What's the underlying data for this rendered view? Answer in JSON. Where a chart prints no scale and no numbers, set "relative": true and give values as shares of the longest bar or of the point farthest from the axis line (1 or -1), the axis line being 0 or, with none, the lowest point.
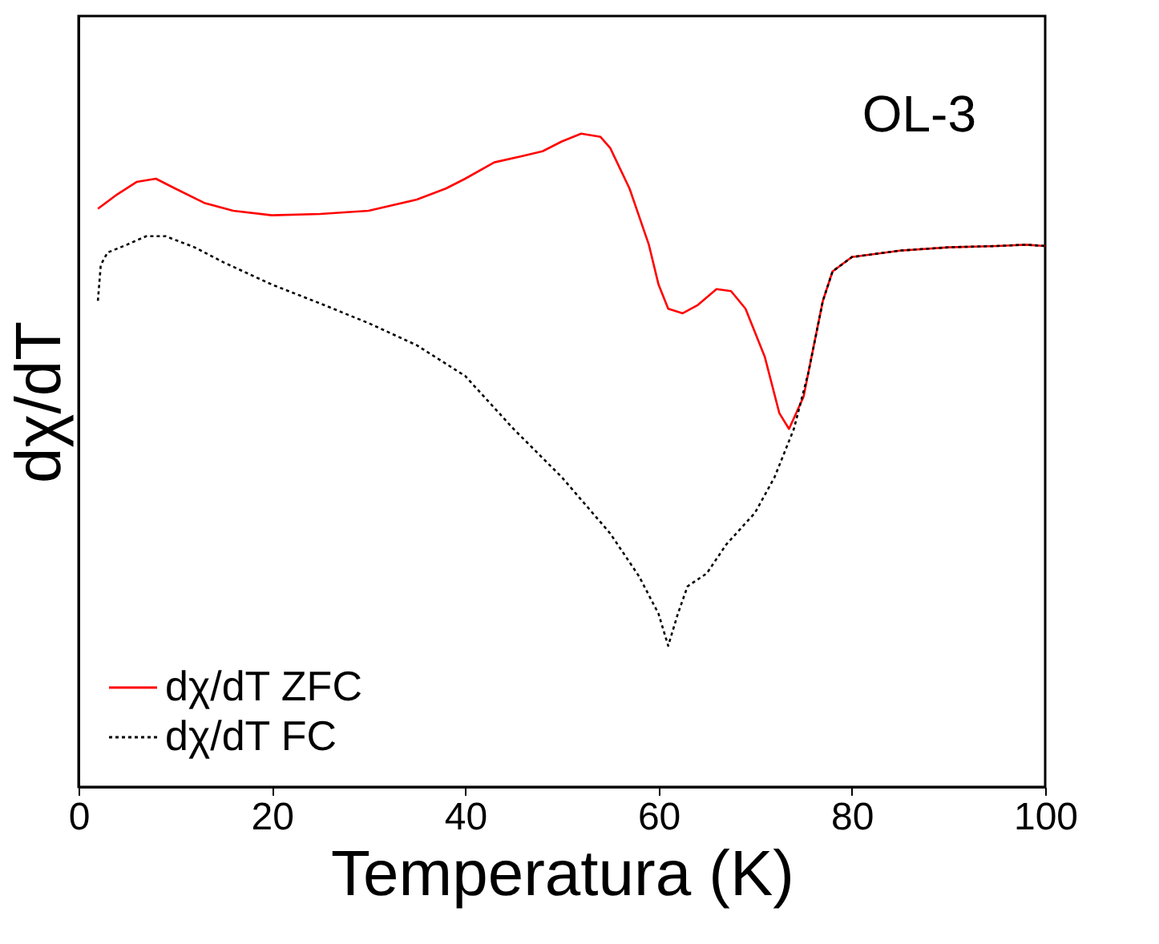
{
  "chart_data": {
    "type": "line",
    "relative": true,
    "xlabel": "Temperatura (K)",
    "ylabel": "dχ/dT",
    "annotations": [
      "OL-3"
    ],
    "xlim": [
      0,
      100
    ],
    "xticks": [
      0,
      20,
      40,
      60,
      80,
      100
    ],
    "legend": "bottom left",
    "grid": false,
    "series": [
      {
        "name": "dχ/dT ZFC",
        "color": "#ff0000",
        "line_style": "solid",
        "x": [
          2,
          4,
          6,
          8,
          10,
          13,
          16,
          20,
          25,
          30,
          35,
          38,
          40,
          43,
          46,
          48,
          50,
          52,
          54,
          55,
          57,
          59,
          60,
          61,
          62.5,
          64,
          66,
          67.5,
          69,
          71,
          72.5,
          73.5,
          75,
          76,
          77,
          78,
          80,
          85,
          90,
          95,
          98,
          100
        ],
        "values": [
          0.885,
          0.907,
          0.926,
          0.931,
          0.916,
          0.894,
          0.882,
          0.875,
          0.877,
          0.882,
          0.899,
          0.916,
          0.931,
          0.956,
          0.966,
          0.973,
          0.988,
          1.0,
          0.995,
          0.978,
          0.916,
          0.83,
          0.769,
          0.732,
          0.725,
          0.737,
          0.762,
          0.759,
          0.732,
          0.658,
          0.572,
          0.548,
          0.597,
          0.671,
          0.744,
          0.789,
          0.811,
          0.821,
          0.826,
          0.828,
          0.83,
          0.828
        ]
      },
      {
        "name": "dχ/dT FC",
        "color": "#000000",
        "line_style": "dotted",
        "x": [
          2,
          2.3,
          3,
          5,
          7,
          9,
          12,
          15,
          20,
          25,
          30,
          35,
          40,
          45,
          50,
          55,
          58,
          60,
          61,
          62,
          63,
          65,
          67,
          70,
          72,
          74,
          75.5,
          77,
          78,
          80,
          85,
          90,
          95,
          98,
          100
        ],
        "values": [
          0.744,
          0.799,
          0.818,
          0.83,
          0.843,
          0.843,
          0.826,
          0.803,
          0.769,
          0.74,
          0.71,
          0.676,
          0.629,
          0.548,
          0.474,
          0.388,
          0.322,
          0.265,
          0.216,
          0.265,
          0.307,
          0.327,
          0.371,
          0.42,
          0.474,
          0.548,
          0.634,
          0.744,
          0.789,
          0.811,
          0.821,
          0.826,
          0.828,
          0.83,
          0.828
        ]
      }
    ]
  }
}
